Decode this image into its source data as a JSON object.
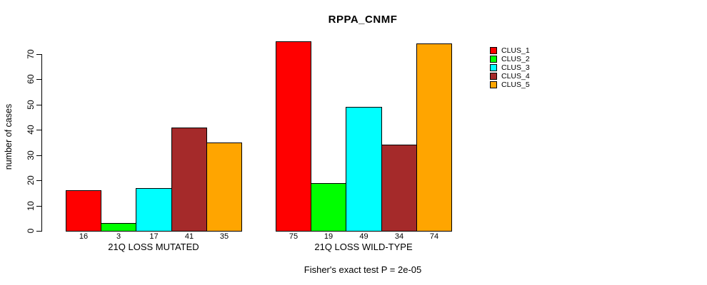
{
  "chart_data": {
    "type": "bar",
    "title": "RPPA_CNMF",
    "ylabel": "number of cases",
    "xlabel": "",
    "ylim": [
      0,
      70
    ],
    "yticks": [
      0,
      10,
      20,
      30,
      40,
      50,
      60,
      70
    ],
    "grid": false,
    "legend_position": "right-outside-top",
    "categories": [
      "21Q LOSS MUTATED",
      "21Q LOSS WILD-TYPE"
    ],
    "groups": [
      {
        "label": "21Q LOSS MUTATED",
        "values": [
          16,
          3,
          17,
          41,
          35
        ]
      },
      {
        "label": "21Q LOSS WILD-TYPE",
        "values": [
          75,
          19,
          49,
          34,
          74
        ]
      }
    ],
    "series": [
      {
        "name": "CLUS_1",
        "color": "#FF0000"
      },
      {
        "name": "CLUS_2",
        "color": "#00FF00"
      },
      {
        "name": "CLUS_3",
        "color": "#00FFFF"
      },
      {
        "name": "CLUS_4",
        "color": "#A52A2A"
      },
      {
        "name": "CLUS_5",
        "color": "#FFA500"
      }
    ],
    "bar_value_labels": [
      [
        16,
        3,
        17,
        41,
        35
      ],
      [
        75,
        19,
        49,
        34,
        74
      ]
    ],
    "caption": "Fisher's exact test P = 2e-05",
    "axis_color": "#000000",
    "background_color": "#FFFFFF"
  }
}
